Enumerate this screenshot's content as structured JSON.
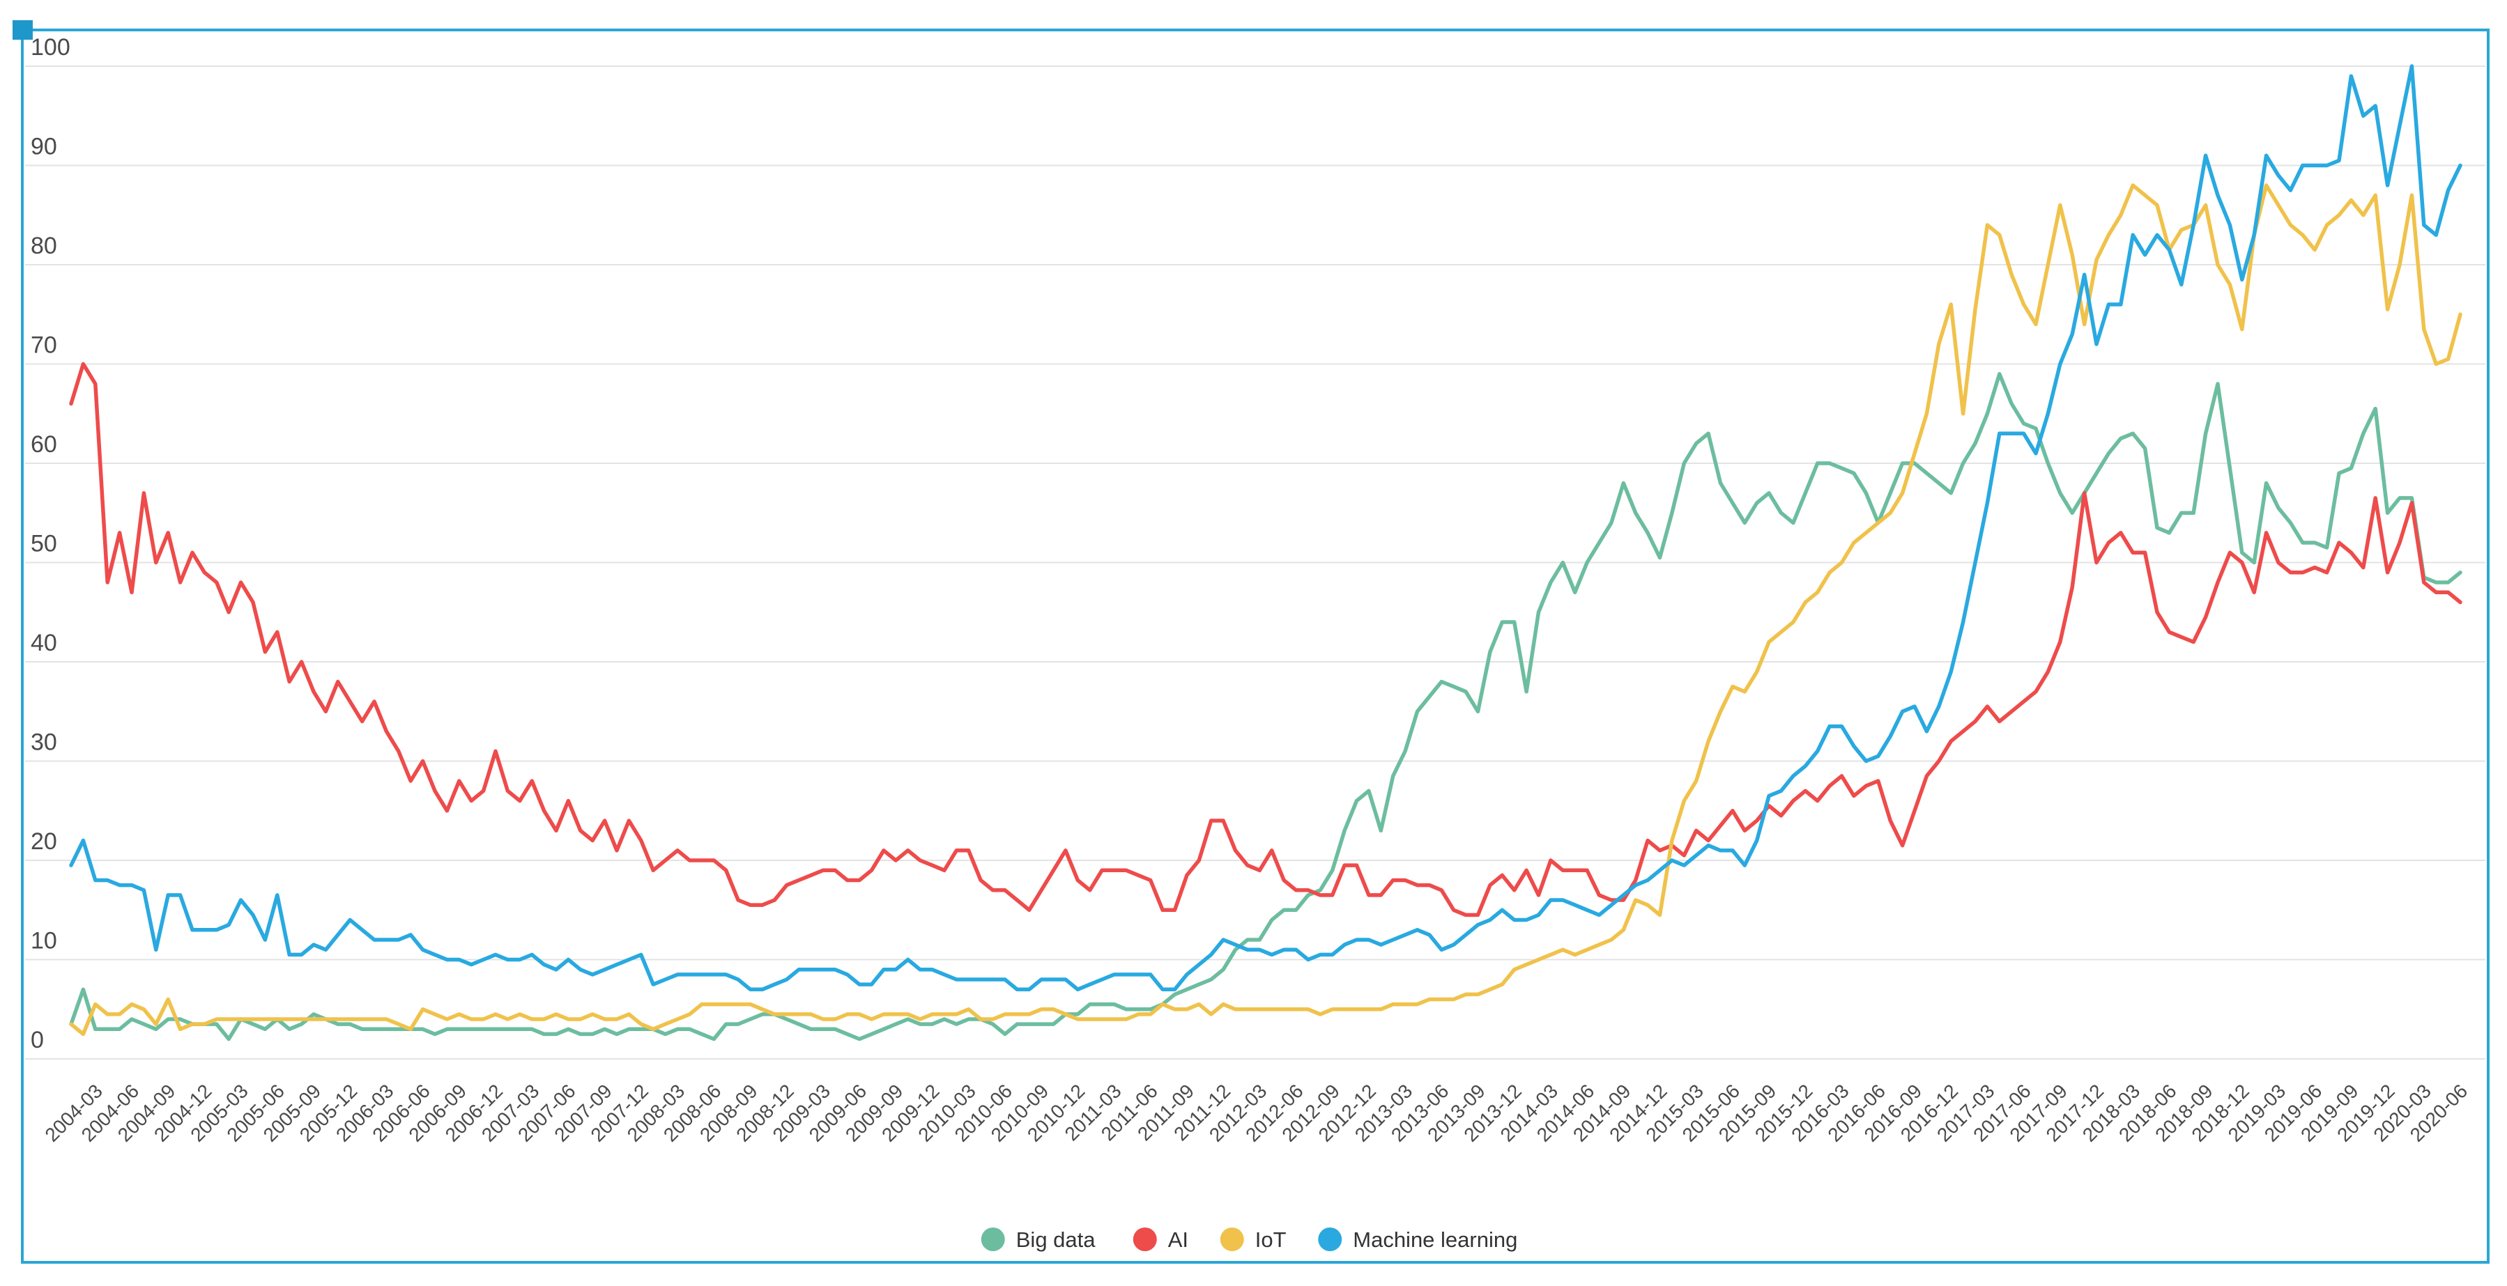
{
  "chart_data": {
    "type": "line",
    "title": "",
    "xlabel": "",
    "ylabel": "",
    "ylim": [
      0,
      100
    ],
    "y_ticks": [
      0,
      10,
      20,
      30,
      40,
      50,
      60,
      70,
      80,
      90,
      100
    ],
    "grid": "horizontal",
    "legend_position": "bottom-center",
    "x_label_start_index": 2,
    "x_label_step": 3,
    "x_labels": [
      "2004-03",
      "2004-06",
      "2004-09",
      "2004-12",
      "2005-03",
      "2005-06",
      "2005-09",
      "2005-12",
      "2006-03",
      "2006-06",
      "2006-09",
      "2006-12",
      "2007-03",
      "2007-06",
      "2007-09",
      "2007-12",
      "2008-03",
      "2008-06",
      "2008-09",
      "2008-12",
      "2009-03",
      "2009-06",
      "2009-09",
      "2009-12",
      "2010-03",
      "2010-06",
      "2010-09",
      "2010-12",
      "2011-03",
      "2011-06",
      "2011-09",
      "2011-12",
      "2012-03",
      "2012-06",
      "2012-09",
      "2012-12",
      "2013-03",
      "2013-06",
      "2013-09",
      "2013-12",
      "2014-03",
      "2014-06",
      "2014-09",
      "2014-12",
      "2015-03",
      "2015-06",
      "2015-09",
      "2015-12",
      "2016-03",
      "2016-06",
      "2016-09",
      "2016-12",
      "2017-03",
      "2017-06",
      "2017-09",
      "2017-12",
      "2018-03",
      "2018-06",
      "2018-09",
      "2018-12",
      "2019-03",
      "2019-06",
      "2019-09",
      "2019-12",
      "2020-03",
      "2020-06"
    ],
    "series": [
      {
        "name": "Big data",
        "color": "#6cbd9f",
        "values": [
          3.5,
          7,
          3,
          3,
          3,
          4,
          3.5,
          3,
          4,
          4,
          3.5,
          3.5,
          3.5,
          2,
          4,
          3.5,
          3,
          4,
          3,
          3.5,
          4.5,
          4,
          3.5,
          3.5,
          3,
          3,
          3,
          3,
          3,
          3,
          2.5,
          3,
          3,
          3,
          3,
          3,
          3,
          3,
          3,
          2.5,
          2.5,
          3,
          2.5,
          2.5,
          3,
          2.5,
          3,
          3,
          3,
          2.5,
          3,
          3,
          2.5,
          2,
          3.5,
          3.5,
          4,
          4.5,
          4.5,
          4,
          3.5,
          3,
          3,
          3,
          2.5,
          2,
          2.5,
          3,
          3.5,
          4,
          3.5,
          3.5,
          4,
          3.5,
          4,
          4,
          3.5,
          2.5,
          3.5,
          3.5,
          3.5,
          3.5,
          4.5,
          4.5,
          5.5,
          5.5,
          5.5,
          5,
          5,
          5,
          5.5,
          6.5,
          7,
          7.5,
          8,
          9,
          11,
          12,
          12,
          14,
          15,
          15,
          16.5,
          17,
          19,
          23,
          26,
          27,
          23,
          28.5,
          31,
          35,
          36.5,
          38,
          37.5,
          37,
          35,
          41,
          44,
          44,
          37,
          45,
          48,
          50,
          47,
          50,
          52,
          54,
          58,
          55,
          53,
          50.5,
          55,
          60,
          62,
          63,
          58,
          56,
          54,
          56,
          57,
          55,
          54,
          57,
          60,
          60,
          59.5,
          59,
          57,
          54,
          57,
          60,
          60,
          59,
          58,
          57,
          60,
          62,
          65,
          69,
          66,
          64,
          63.5,
          60,
          57,
          55,
          57,
          59,
          61,
          62.5,
          63,
          61.5,
          53.5,
          53,
          55,
          55,
          63,
          68,
          59.5,
          51,
          50,
          58,
          55.5,
          54,
          52,
          52,
          51.5,
          59,
          59.5,
          63,
          65.5,
          55,
          56.5,
          56.5,
          48.5,
          48,
          48,
          49
        ]
      },
      {
        "name": "AI",
        "color": "#ee4b4b",
        "values": [
          66,
          70,
          68,
          48,
          53,
          47,
          57,
          50,
          53,
          48,
          51,
          49,
          48,
          45,
          48,
          46,
          41,
          43,
          38,
          40,
          37,
          35,
          38,
          36,
          34,
          36,
          33,
          31,
          28,
          30,
          27,
          25,
          28,
          26,
          27,
          31,
          27,
          26,
          28,
          25,
          23,
          26,
          23,
          22,
          24,
          21,
          24,
          22,
          19,
          20,
          21,
          20,
          20,
          20,
          19,
          16,
          15.5,
          15.5,
          16,
          17.5,
          18,
          18.5,
          19,
          19,
          18,
          18,
          19,
          21,
          20,
          21,
          20,
          19.5,
          19,
          21,
          21,
          18,
          17,
          17,
          16,
          15,
          17,
          19,
          21,
          18,
          17,
          19,
          19,
          19,
          18.5,
          18,
          15,
          15,
          18.5,
          20,
          24,
          24,
          21,
          19.5,
          19,
          21,
          18,
          17,
          17,
          16.5,
          16.5,
          19.5,
          19.5,
          16.5,
          16.5,
          18,
          18,
          17.5,
          17.5,
          17,
          15,
          14.5,
          14.5,
          17.5,
          18.5,
          17,
          19,
          16.5,
          20,
          19,
          19,
          19,
          16.5,
          16,
          16,
          18,
          22,
          21,
          21.5,
          20.5,
          23,
          22,
          23.5,
          25,
          23,
          24,
          25.5,
          24.5,
          26,
          27,
          26,
          27.5,
          28.5,
          26.5,
          27.5,
          28,
          24,
          21.5,
          25,
          28.5,
          30,
          32,
          33,
          34,
          35.5,
          34,
          35,
          36,
          37,
          39,
          42,
          47.5,
          57,
          50,
          52,
          53,
          51,
          51,
          45,
          43,
          42.5,
          42,
          44.5,
          48,
          51,
          50,
          47,
          53,
          50,
          49,
          49,
          49.5,
          49,
          52,
          51,
          49.5,
          56.5,
          49,
          52,
          56,
          48,
          47,
          47,
          46
        ]
      },
      {
        "name": "IoT",
        "color": "#f0c24b",
        "values": [
          3.5,
          2.5,
          5.5,
          4.5,
          4.5,
          5.5,
          5,
          3.5,
          6,
          3,
          3.5,
          3.5,
          4,
          4,
          4,
          4,
          4,
          4,
          4,
          4,
          4,
          4,
          4,
          4,
          4,
          4,
          4,
          3.5,
          3,
          5,
          4.5,
          4,
          4.5,
          4,
          4,
          4.5,
          4,
          4.5,
          4,
          4,
          4.5,
          4,
          4,
          4.5,
          4,
          4,
          4.5,
          3.5,
          3,
          3.5,
          4,
          4.5,
          5.5,
          5.5,
          5.5,
          5.5,
          5.5,
          5,
          4.5,
          4.5,
          4.5,
          4.5,
          4,
          4,
          4.5,
          4.5,
          4,
          4.5,
          4.5,
          4.5,
          4,
          4.5,
          4.5,
          4.5,
          5,
          4,
          4,
          4.5,
          4.5,
          4.5,
          5,
          5,
          4.5,
          4,
          4,
          4,
          4,
          4,
          4.5,
          4.5,
          5.5,
          5,
          5,
          5.5,
          4.5,
          5.5,
          5,
          5,
          5,
          5,
          5,
          5,
          5,
          4.5,
          5,
          5,
          5,
          5,
          5,
          5.5,
          5.5,
          5.5,
          6,
          6,
          6,
          6.5,
          6.5,
          7,
          7.5,
          9,
          9.5,
          10,
          10.5,
          11,
          10.5,
          11,
          11.5,
          12,
          13,
          16,
          15.5,
          14.5,
          22,
          26,
          28,
          32,
          35,
          37.5,
          37,
          39,
          42,
          43,
          44,
          46,
          47,
          49,
          50,
          52,
          53,
          54,
          55,
          57,
          61,
          65,
          72,
          76,
          65,
          75.5,
          84,
          83,
          79,
          76,
          74,
          80,
          86,
          81,
          74,
          80.5,
          83,
          85,
          88,
          87,
          86,
          81.5,
          83.5,
          84,
          86,
          80,
          78,
          73.5,
          83,
          88,
          86,
          84,
          83,
          81.5,
          84,
          85,
          86.5,
          85,
          87,
          75.5,
          80,
          87,
          73.5,
          70,
          70.5,
          75
        ]
      },
      {
        "name": "Machine learning",
        "color": "#29a9e0",
        "values": [
          19.5,
          22,
          18,
          18,
          17.5,
          17.5,
          17,
          11,
          16.5,
          16.5,
          13,
          13,
          13,
          13.5,
          16,
          14.5,
          12,
          16.5,
          10.5,
          10.5,
          11.5,
          11,
          12.5,
          14,
          13,
          12,
          12,
          12,
          12.5,
          11,
          10.5,
          10,
          10,
          9.5,
          10,
          10.5,
          10,
          10,
          10.5,
          9.5,
          9,
          10,
          9,
          8.5,
          9,
          9.5,
          10,
          10.5,
          7.5,
          8,
          8.5,
          8.5,
          8.5,
          8.5,
          8.5,
          8,
          7,
          7,
          7.5,
          8,
          9,
          9,
          9,
          9,
          8.5,
          7.5,
          7.5,
          9,
          9,
          10,
          9,
          9,
          8.5,
          8,
          8,
          8,
          8,
          8,
          7,
          7,
          8,
          8,
          8,
          7,
          7.5,
          8,
          8.5,
          8.5,
          8.5,
          8.5,
          7,
          7,
          8.5,
          9.5,
          10.5,
          12,
          11.5,
          11,
          11,
          10.5,
          11,
          11,
          10,
          10.5,
          10.5,
          11.5,
          12,
          12,
          11.5,
          12,
          12.5,
          13,
          12.5,
          11,
          11.5,
          12.5,
          13.5,
          14,
          15,
          14,
          14,
          14.5,
          16,
          16,
          15.5,
          15,
          14.5,
          15.5,
          16.5,
          17.5,
          18,
          19,
          20,
          19.5,
          20.5,
          21.5,
          21,
          21,
          19.5,
          22,
          26.5,
          27,
          28.5,
          29.5,
          31,
          33.5,
          33.5,
          31.5,
          30,
          30.5,
          32.5,
          35,
          35.5,
          33,
          35.5,
          39,
          44,
          50,
          56,
          63,
          63,
          63,
          61,
          65,
          70,
          73,
          79,
          72,
          76,
          76,
          83,
          81,
          83,
          81.5,
          78,
          84,
          91,
          87,
          84,
          78.5,
          83,
          91,
          89,
          87.5,
          90,
          90,
          90,
          90.5,
          99,
          95,
          96,
          88,
          94,
          100,
          84,
          83,
          87.5,
          90
        ]
      }
    ],
    "frame_color": "#2ba6d6",
    "corner_handle_color": "#1e97cb",
    "gridline_color": "#e3e3e3",
    "tick_label_color": "#4a4a4a",
    "legend_text_color": "#333333"
  }
}
